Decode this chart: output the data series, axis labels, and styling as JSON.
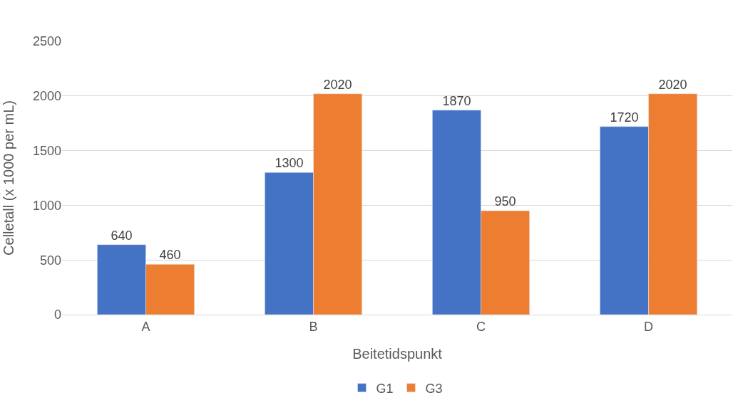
{
  "chart_data": {
    "type": "bar",
    "xlabel": "Beitetidspunkt",
    "ylabel": "Celletall (x 1000 per mL)",
    "categories": [
      "A",
      "B",
      "C",
      "D"
    ],
    "series": [
      {
        "name": "G1",
        "color": "#4472c4",
        "values": [
          640,
          1300,
          1870,
          1720
        ]
      },
      {
        "name": "G3",
        "color": "#ed7d31",
        "values": [
          460,
          2020,
          950,
          2020
        ]
      }
    ],
    "ylim": [
      0,
      2500
    ],
    "yticks": [
      0,
      500,
      1000,
      1500,
      2000,
      2500
    ],
    "grid": "y",
    "legend": "bottom",
    "data_labels": true
  }
}
